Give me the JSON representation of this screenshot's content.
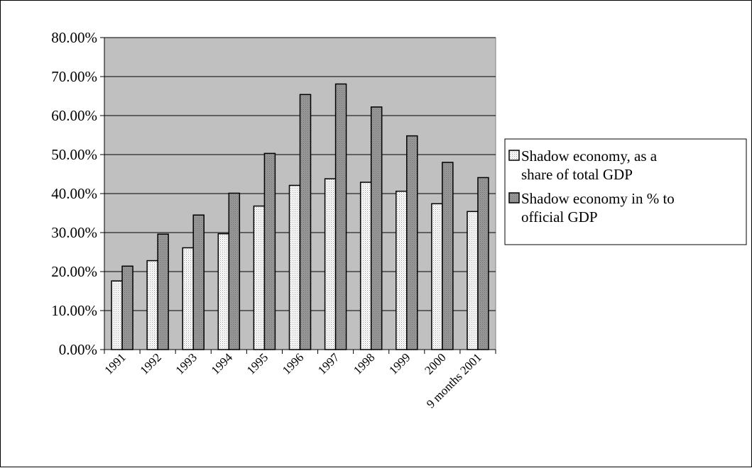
{
  "chart_data": {
    "type": "bar",
    "categories": [
      "1991",
      "1992",
      "1993",
      "1994",
      "1995",
      "1996",
      "1997",
      "1998",
      "1999",
      "2000",
      "9 months 2001"
    ],
    "series": [
      {
        "name": "Shadow economy, as a share of total GDP",
        "values": [
          0.176,
          0.228,
          0.261,
          0.297,
          0.368,
          0.421,
          0.438,
          0.429,
          0.406,
          0.374,
          0.354
        ],
        "pattern": "dotted-light",
        "color": "#ffffff"
      },
      {
        "name": "Shadow economy in % to official GDP",
        "values": [
          0.214,
          0.296,
          0.345,
          0.401,
          0.503,
          0.654,
          0.681,
          0.622,
          0.548,
          0.48,
          0.441
        ],
        "pattern": "dotted-dark",
        "color": "#8c8c8c"
      }
    ],
    "ylim": [
      0,
      0.8
    ],
    "yticks": [
      "0.00%",
      "10.00%",
      "20.00%",
      "30.00%",
      "40.00%",
      "50.00%",
      "60.00%",
      "70.00%",
      "80.00%"
    ],
    "ystep": 0.1,
    "grid": true,
    "plot_background": "#c0c0c0",
    "legend_position": "right",
    "legend_lines": [
      [
        "Shadow economy, as a",
        "share of total GDP"
      ],
      [
        "Shadow economy in % to",
        "official GDP"
      ]
    ],
    "title": "",
    "xlabel": "",
    "ylabel": ""
  }
}
